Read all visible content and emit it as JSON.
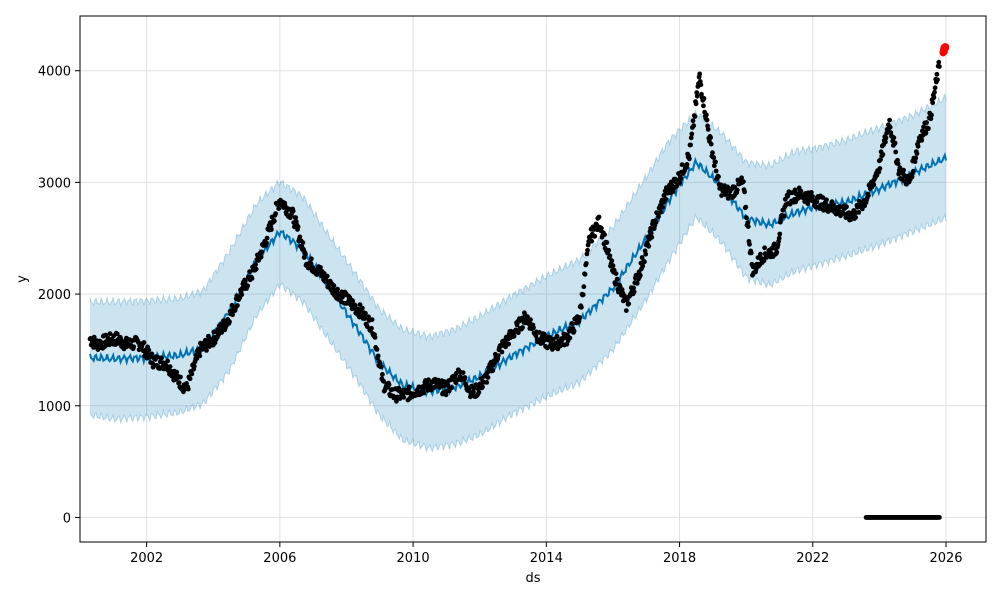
{
  "chart_data": {
    "type": "line",
    "title": "",
    "xlabel": "ds",
    "ylabel": "y",
    "xlim": [
      2000.0,
      2027.2
    ],
    "ylim": [
      -220,
      4490
    ],
    "x_ticks": [
      2002,
      2006,
      2010,
      2014,
      2018,
      2022,
      2026
    ],
    "x_tick_labels": [
      "2002",
      "2006",
      "2010",
      "2014",
      "2018",
      "2022",
      "2026"
    ],
    "y_ticks": [
      0,
      1000,
      2000,
      3000,
      4000
    ],
    "y_tick_labels": [
      "0",
      "1000",
      "2000",
      "3000",
      "4000"
    ],
    "grid": true,
    "legend": "none",
    "colors": {
      "forecast_line": "#0072B2",
      "uncertainty_band": "#0072B2",
      "observed_points": "#000000",
      "highlight_points": "#ff0000",
      "grid": "#e0e0e0"
    },
    "series": [
      {
        "role": "forecast",
        "x": [
          2000.3,
          2001.0,
          2002.0,
          2003.0,
          2003.7,
          2004.5,
          2005.3,
          2006.0,
          2006.7,
          2007.5,
          2008.3,
          2009.0,
          2009.7,
          2010.5,
          2011.3,
          2012.0,
          2013.0,
          2014.0,
          2015.0,
          2016.0,
          2017.0,
          2017.7,
          2018.5,
          2019.3,
          2020.0,
          2020.7,
          2021.5,
          2022.0,
          2023.0,
          2024.0,
          2025.0,
          2026.0
        ],
        "y": [
          1430,
          1420,
          1430,
          1450,
          1520,
          1850,
          2300,
          2560,
          2400,
          2050,
          1700,
          1380,
          1180,
          1130,
          1170,
          1260,
          1450,
          1620,
          1760,
          2050,
          2500,
          2850,
          3180,
          2950,
          2680,
          2620,
          2730,
          2780,
          2820,
          2940,
          3080,
          3220
        ]
      },
      {
        "role": "upper_bound",
        "x": [
          2000.3,
          2001.0,
          2002.0,
          2003.0,
          2003.7,
          2004.5,
          2005.3,
          2006.0,
          2006.7,
          2007.5,
          2008.3,
          2009.0,
          2009.7,
          2010.5,
          2011.3,
          2012.0,
          2013.0,
          2014.0,
          2015.0,
          2016.0,
          2017.0,
          2017.7,
          2018.5,
          2019.3,
          2020.0,
          2020.7,
          2021.5,
          2022.0,
          2023.0,
          2024.0,
          2025.0,
          2026.0
        ],
        "y": [
          1930,
          1930,
          1940,
          1960,
          2030,
          2390,
          2810,
          3010,
          2870,
          2510,
          2170,
          1860,
          1680,
          1620,
          1690,
          1800,
          1990,
          2160,
          2310,
          2600,
          3050,
          3380,
          3620,
          3430,
          3180,
          3150,
          3280,
          3300,
          3380,
          3490,
          3600,
          3760
        ]
      },
      {
        "role": "lower_bound",
        "x": [
          2000.3,
          2001.0,
          2002.0,
          2003.0,
          2003.7,
          2004.5,
          2005.3,
          2006.0,
          2006.7,
          2007.5,
          2008.3,
          2009.0,
          2009.7,
          2010.5,
          2011.3,
          2012.0,
          2013.0,
          2014.0,
          2015.0,
          2016.0,
          2017.0,
          2017.7,
          2018.5,
          2019.3,
          2020.0,
          2020.7,
          2021.5,
          2022.0,
          2023.0,
          2024.0,
          2025.0,
          2026.0
        ],
        "y": [
          920,
          880,
          900,
          940,
          1020,
          1320,
          1810,
          2090,
          1930,
          1580,
          1240,
          910,
          690,
          620,
          660,
          740,
          930,
          1080,
          1210,
          1500,
          1950,
          2310,
          2690,
          2450,
          2150,
          2080,
          2210,
          2250,
          2340,
          2440,
          2560,
          2680
        ]
      },
      {
        "role": "observed",
        "x": [
          2000.3,
          2000.5,
          2000.8,
          2001.1,
          2001.4,
          2001.8,
          2002.2,
          2002.6,
          2002.9,
          2003.2,
          2003.6,
          2004.0,
          2004.4,
          2004.8,
          2005.2,
          2005.6,
          2006.0,
          2006.4,
          2006.8,
          2007.2,
          2007.6,
          2008.0,
          2008.4,
          2008.8,
          2009.1,
          2009.4,
          2009.8,
          2010.2,
          2010.6,
          2011.0,
          2011.4,
          2011.8,
          2012.2,
          2012.6,
          2013.0,
          2013.4,
          2013.8,
          2014.2,
          2014.6,
          2015.0,
          2015.3,
          2015.6,
          2016.0,
          2016.4,
          2016.8,
          2017.2,
          2017.6,
          2018.0,
          2018.3,
          2018.6,
          2018.9,
          2019.2,
          2019.5,
          2019.9,
          2020.2,
          2020.5,
          2020.9,
          2021.2,
          2021.6,
          2022.0,
          2022.4,
          2022.8,
          2023.2,
          2023.6,
          2024.0,
          2024.3,
          2024.6,
          2024.9,
          2025.2,
          2025.5,
          2025.8
        ],
        "y": [
          1600,
          1550,
          1580,
          1600,
          1550,
          1560,
          1400,
          1380,
          1250,
          1150,
          1500,
          1600,
          1750,
          2000,
          2200,
          2500,
          2850,
          2700,
          2300,
          2200,
          2050,
          1950,
          1850,
          1700,
          1200,
          1100,
          1100,
          1150,
          1200,
          1150,
          1300,
          1100,
          1250,
          1500,
          1650,
          1800,
          1600,
          1550,
          1600,
          1800,
          2500,
          2650,
          2200,
          1900,
          2200,
          2600,
          2900,
          3050,
          3250,
          3950,
          3400,
          2950,
          2900,
          3000,
          2200,
          2350,
          2400,
          2850,
          2900,
          2850,
          2800,
          2750,
          2700,
          2850,
          3150,
          3550,
          3100,
          3000,
          3400,
          3550,
          4050
        ]
      },
      {
        "role": "zero_observed",
        "x": [
          2023.6,
          2023.8,
          2024.0,
          2024.4,
          2024.8,
          2025.0,
          2025.2,
          2025.4,
          2025.6,
          2025.8
        ],
        "y": [
          0,
          0,
          0,
          0,
          0,
          0,
          0,
          0,
          0,
          0
        ]
      },
      {
        "role": "highlight",
        "x": [
          2025.9,
          2026.0
        ],
        "y": [
          4180,
          4200
        ]
      }
    ]
  }
}
